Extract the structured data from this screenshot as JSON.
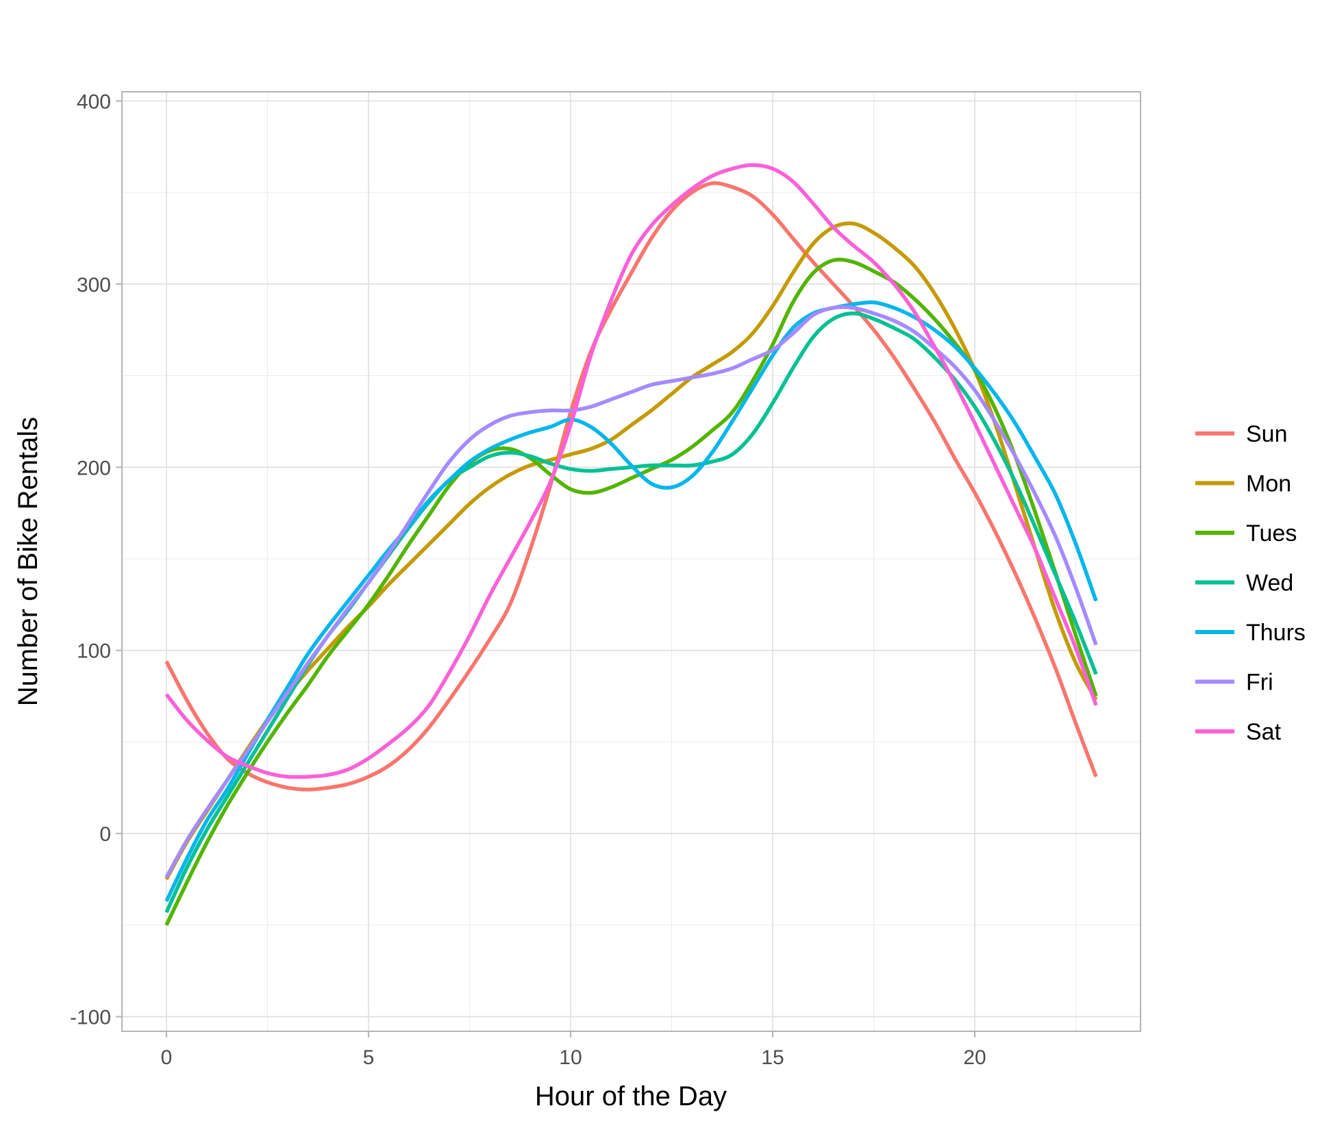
{
  "colors": {
    "Sun": "#F8766D",
    "Mon": "#C49A00",
    "Tues": "#53B400",
    "Wed": "#00C094",
    "Thurs": "#00B6EB",
    "Fri": "#A58AFF",
    "Sat": "#FB61D7",
    "grid": "#ebebeb",
    "panel_border": "#b3b3b3"
  },
  "chart_data": {
    "type": "line",
    "xlabel": "Hour of the Day",
    "ylabel": "Number of Bike Rentals",
    "xlim": [
      -1.1,
      24.1
    ],
    "ylim": [
      -108,
      405
    ],
    "x_ticks": [
      0,
      5,
      10,
      15,
      20
    ],
    "x_tick_labels": [
      "0",
      "5",
      "10",
      "15",
      "20"
    ],
    "y_ticks": [
      -100,
      0,
      100,
      200,
      300,
      400
    ],
    "y_tick_labels": [
      "-100",
      "0",
      "100",
      "200",
      "300",
      "400"
    ],
    "grid": true,
    "legend": "right",
    "x": [
      0,
      0.5,
      1,
      1.5,
      2,
      2.5,
      3,
      3.5,
      4,
      4.5,
      5,
      5.5,
      6,
      6.5,
      7,
      7.5,
      8,
      8.5,
      9,
      9.5,
      10,
      10.5,
      11,
      11.5,
      12,
      12.5,
      13,
      13.5,
      14,
      14.5,
      15,
      15.5,
      16,
      16.5,
      17,
      17.5,
      18,
      18.5,
      19,
      19.5,
      20,
      20.5,
      21,
      21.5,
      22,
      22.5,
      23
    ],
    "series": [
      {
        "name": "Sun",
        "values": [
          94,
          73,
          55,
          41,
          33,
          28,
          25,
          24,
          25,
          27,
          31,
          37,
          46,
          58,
          73,
          89,
          106,
          125,
          155,
          190,
          230,
          263,
          286,
          306,
          325,
          340,
          350,
          355,
          353,
          348,
          338,
          325,
          312,
          300,
          288,
          275,
          260,
          243,
          225,
          205,
          186,
          165,
          142,
          117,
          90,
          60,
          31
        ]
      },
      {
        "name": "Mon",
        "values": [
          -25,
          -5,
          12,
          29,
          46,
          62,
          76,
          89,
          101,
          113,
          124,
          136,
          147,
          158,
          169,
          180,
          189,
          196,
          201,
          204,
          207,
          210,
          215,
          223,
          231,
          240,
          249,
          256,
          263,
          273,
          288,
          306,
          322,
          331,
          333,
          328,
          320,
          310,
          295,
          276,
          253,
          224,
          190,
          155,
          121,
          93,
          73
        ]
      },
      {
        "name": "Tues",
        "values": [
          -50,
          -27,
          -5,
          15,
          33,
          50,
          66,
          81,
          97,
          111,
          125,
          141,
          158,
          174,
          190,
          202,
          209,
          210,
          205,
          196,
          188,
          186,
          189,
          194,
          199,
          204,
          211,
          220,
          230,
          247,
          267,
          290,
          306,
          313,
          312,
          307,
          301,
          292,
          281,
          268,
          253,
          232,
          206,
          175,
          142,
          108,
          75
        ]
      },
      {
        "name": "Wed",
        "values": [
          -43,
          -19,
          2,
          20,
          38,
          56,
          74,
          92,
          108,
          122,
          137,
          152,
          167,
          181,
          193,
          200,
          206,
          208,
          206,
          202,
          199,
          198,
          199,
          200,
          201,
          201,
          201,
          203,
          207,
          218,
          235,
          254,
          271,
          281,
          284,
          281,
          276,
          270,
          260,
          248,
          233,
          214,
          192,
          167,
          141,
          115,
          87
        ]
      },
      {
        "name": "Thurs",
        "values": [
          -37,
          -14,
          7,
          24,
          43,
          62,
          80,
          98,
          113,
          127,
          141,
          155,
          168,
          182,
          193,
          203,
          210,
          215,
          219,
          222,
          226,
          222,
          213,
          201,
          191,
          189,
          195,
          208,
          225,
          243,
          261,
          276,
          284,
          287,
          289,
          290,
          287,
          282,
          275,
          266,
          254,
          240,
          224,
          205,
          185,
          158,
          127
        ]
      },
      {
        "name": "Fri",
        "values": [
          -24,
          -4,
          13,
          29,
          45,
          61,
          77,
          93,
          108,
          123,
          137,
          153,
          170,
          187,
          203,
          215,
          223,
          228,
          230,
          231,
          231,
          233,
          237,
          241,
          245,
          247,
          249,
          251,
          254,
          259,
          264,
          273,
          283,
          287,
          287,
          284,
          280,
          274,
          265,
          255,
          242,
          225,
          206,
          185,
          162,
          134,
          103
        ]
      },
      {
        "name": "Sat",
        "values": [
          76,
          62,
          51,
          42,
          37,
          33,
          31,
          31,
          32,
          35,
          41,
          49,
          58,
          70,
          88,
          108,
          130,
          150,
          170,
          192,
          223,
          261,
          291,
          316,
          332,
          343,
          352,
          359,
          363,
          365,
          363,
          356,
          344,
          331,
          321,
          312,
          300,
          285,
          266,
          246,
          224,
          201,
          178,
          155,
          128,
          101,
          70
        ]
      }
    ]
  }
}
